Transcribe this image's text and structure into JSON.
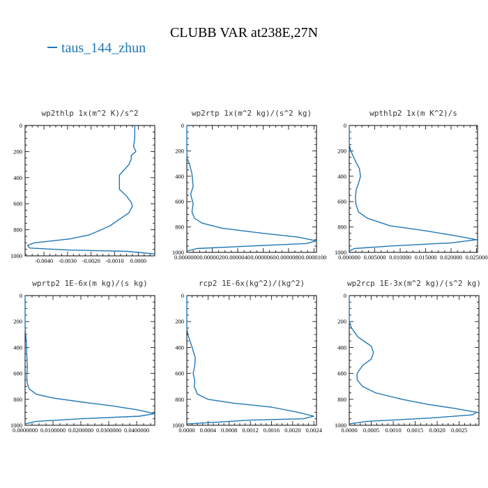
{
  "title": "CLUBB VAR at238E,27N",
  "legend": {
    "label": "taus_144_zhun",
    "color": "#1f77b4"
  },
  "chart_data": [
    {
      "type": "line",
      "title": "wp2thlp   1x(m^2 K)/s^2",
      "xlim": [
        -0.0048,
        0.0007
      ],
      "ylim": [
        1000,
        0
      ],
      "xtick_values": [
        -0.004,
        -0.003,
        -0.002,
        -0.001,
        0
      ],
      "xtick_labels": [
        "-0.0040",
        "-0.0030",
        "-0.0020",
        "-0.0010",
        "0.0000"
      ],
      "ytick_values": [
        0,
        200,
        400,
        600,
        800,
        1000
      ],
      "ytick_labels": [
        "0",
        "200",
        "400",
        "600",
        "800",
        "1000"
      ],
      "series": [
        {
          "x": [
            -0.00015,
            -0.00015,
            -0.0002,
            -0.0001,
            -0.0002,
            -0.0003,
            -0.0003,
            -0.0004,
            -0.0008,
            -0.0008,
            -0.0005,
            -0.0003,
            -0.00025,
            -0.0004,
            -0.0008,
            -0.0012,
            -0.0017,
            -0.0021,
            -0.0029,
            -0.0044,
            -0.0047,
            -0.0046,
            -0.003,
            -0.0005,
            0.0007
          ],
          "y": [
            0,
            100,
            160,
            200,
            215,
            230,
            260,
            300,
            380,
            490,
            540,
            590,
            620,
            670,
            720,
            770,
            810,
            840,
            870,
            900,
            920,
            940,
            955,
            965,
            985
          ]
        }
      ]
    },
    {
      "type": "line",
      "title": "wp2rtp   1x(m^2 kg)/(s^2 kg)",
      "xlim": [
        0,
        1.02e-05
      ],
      "ylim": [
        1000,
        0
      ],
      "xtick_values": [
        0,
        2e-06,
        4e-06,
        6e-06,
        8e-06,
        1e-05
      ],
      "xtick_labels": [
        "0.0000000",
        "0.0000020",
        "0.0000040",
        "0.0000060",
        "0.0000080",
        "0.0000100"
      ],
      "ytick_values": [
        0,
        200,
        400,
        600,
        800,
        1000
      ],
      "ytick_labels": [
        "0",
        "200",
        "400",
        "600",
        "800",
        "1000"
      ],
      "series": [
        {
          "x": [
            0,
            0,
            2e-08,
            2e-07,
            4e-07,
            5e-07,
            3e-07,
            5e-07,
            4e-07,
            6e-07,
            1.2e-06,
            2.8e-06,
            6e-06,
            8.8e-06,
            1.02e-05,
            9.4e-06,
            5e-06,
            8e-07,
            0
          ],
          "y": [
            0,
            200,
            260,
            300,
            380,
            480,
            540,
            620,
            680,
            730,
            770,
            810,
            850,
            880,
            910,
            930,
            950,
            970,
            990
          ]
        }
      ]
    },
    {
      "type": "line",
      "title": "wpthlp2   1x(m K^2)/s",
      "xlim": [
        0,
        0.0252
      ],
      "ylim": [
        1000,
        0
      ],
      "xtick_values": [
        0,
        0.005,
        0.01,
        0.015,
        0.02,
        0.025
      ],
      "xtick_labels": [
        "0.000000",
        "0.005000",
        "0.010000",
        "0.015000",
        "0.020000",
        "0.025000"
      ],
      "ytick_values": [
        0,
        200,
        400,
        600,
        800,
        1000
      ],
      "ytick_labels": [
        "0",
        "200",
        "400",
        "600",
        "800",
        "1000"
      ],
      "series": [
        {
          "x": [
            0,
            0,
            0.0003,
            0.0012,
            0.002,
            0.0022,
            0.0018,
            0.0014,
            0.0012,
            0.0013,
            0.0018,
            0.0035,
            0.008,
            0.015,
            0.021,
            0.025,
            0.02,
            0.008,
            0.001,
            0
          ],
          "y": [
            0,
            150,
            200,
            280,
            340,
            400,
            460,
            500,
            560,
            620,
            680,
            730,
            790,
            830,
            870,
            900,
            925,
            950,
            970,
            990
          ]
        }
      ]
    },
    {
      "type": "line",
      "title": "wprtp2   1E-6x(m kg)/(s kg)",
      "xlim": [
        0,
        0.0465
      ],
      "ylim": [
        1000,
        0
      ],
      "xtick_values": [
        0,
        0.01,
        0.02,
        0.03,
        0.04
      ],
      "xtick_labels": [
        "0.0000000",
        "0.0100000",
        "0.0200000",
        "0.0300000",
        "0.0400000"
      ],
      "ytick_values": [
        0,
        200,
        400,
        600,
        800,
        1000
      ],
      "ytick_labels": [
        "0",
        "200",
        "400",
        "600",
        "800",
        "1000"
      ],
      "series": [
        {
          "x": [
            0,
            0,
            0.0004,
            0.0006,
            0.0008,
            0.0006,
            0.0008,
            0.0015,
            0.004,
            0.01,
            0.02,
            0.031,
            0.04,
            0.0465,
            0.041,
            0.02,
            0.004,
            0
          ],
          "y": [
            0,
            250,
            350,
            450,
            550,
            620,
            680,
            720,
            760,
            790,
            820,
            850,
            880,
            910,
            930,
            950,
            970,
            990
          ]
        }
      ]
    },
    {
      "type": "line",
      "title": "rcp2   1E-6x(kg^2)/(kg^2)",
      "xlim": [
        0,
        0.00245
      ],
      "ylim": [
        1000,
        0
      ],
      "xtick_values": [
        0,
        0.0004,
        0.0008,
        0.0012,
        0.0016,
        0.002,
        0.0024
      ],
      "xtick_labels": [
        "0.0000",
        "0.0004",
        "0.0008",
        "0.0012",
        "0.0016",
        "0.0020",
        "0.0024"
      ],
      "ytick_values": [
        0,
        200,
        400,
        600,
        800,
        1000
      ],
      "ytick_labels": [
        "0",
        "200",
        "400",
        "600",
        "800",
        "1000"
      ],
      "series": [
        {
          "x": [
            0,
            0,
            2e-05,
            0.0001,
            0.00016,
            0.00015,
            0.00012,
            0.00015,
            0.00014,
            0.0002,
            0.0004,
            0.0009,
            0.0016,
            0.0021,
            0.0024,
            0.0022,
            0.0012,
            0.0006,
            0
          ],
          "y": [
            0,
            250,
            300,
            400,
            480,
            540,
            600,
            660,
            700,
            760,
            800,
            830,
            860,
            900,
            930,
            950,
            960,
            975,
            990
          ]
        }
      ]
    },
    {
      "type": "line",
      "title": "wp2rcp   1E-3x(m^2 kg)/(s^2 kg)",
      "xlim": [
        0,
        0.00295
      ],
      "ylim": [
        1000,
        0
      ],
      "xtick_values": [
        0,
        0.0005,
        0.001,
        0.0015,
        0.002,
        0.0025
      ],
      "xtick_labels": [
        "0.0000",
        "0.0005",
        "0.0010",
        "0.0015",
        "0.0020",
        "0.0025"
      ],
      "ytick_values": [
        0,
        200,
        400,
        600,
        800,
        1000
      ],
      "ytick_labels": [
        "0",
        "200",
        "400",
        "600",
        "800",
        "1000"
      ],
      "series": [
        {
          "x": [
            0,
            0,
            5e-05,
            0.0002,
            0.0005,
            0.00055,
            0.0005,
            0.0003,
            0.00018,
            0.00018,
            0.0003,
            0.0006,
            0.0012,
            0.0018,
            0.0024,
            0.0029,
            0.0028,
            0.0018,
            0.0004,
            0
          ],
          "y": [
            0,
            200,
            250,
            320,
            390,
            440,
            490,
            540,
            600,
            650,
            700,
            750,
            800,
            840,
            870,
            900,
            920,
            945,
            970,
            990
          ]
        }
      ]
    }
  ]
}
